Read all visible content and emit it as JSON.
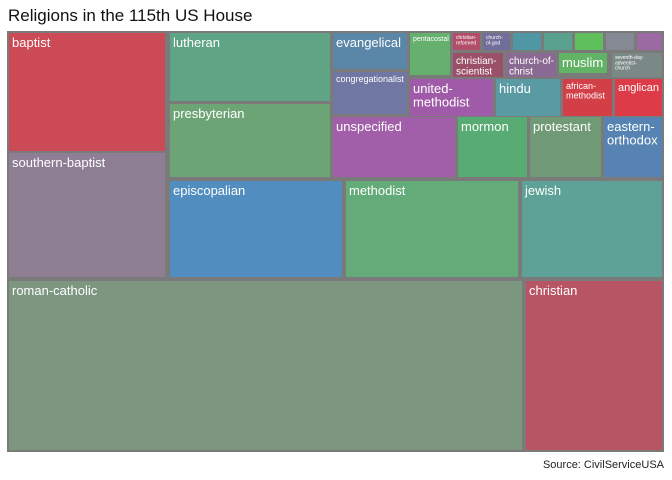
{
  "title": "Religions in the 115th US House",
  "source": "Source: CivilServiceUSA",
  "chart_data": {
    "type": "treemap",
    "items": [
      {
        "name": "baptist",
        "color": "#cb4a55"
      },
      {
        "name": "southern-baptist",
        "color": "#8d7e94"
      },
      {
        "name": "lutheran",
        "color": "#5ea485"
      },
      {
        "name": "presbyterian",
        "color": "#6ca475"
      },
      {
        "name": "episcopalian",
        "color": "#518ebf"
      },
      {
        "name": "methodist",
        "color": "#63ab78"
      },
      {
        "name": "jewish",
        "color": "#5ea197"
      },
      {
        "name": "roman-catholic",
        "color": "#7c9680"
      },
      {
        "name": "christian",
        "color": "#b85564"
      },
      {
        "name": "evangelical",
        "color": "#5a86a8"
      },
      {
        "name": "congregationalist",
        "color": "#6f77a2"
      },
      {
        "name": "pentacostal",
        "color": "#65b06e"
      },
      {
        "name": "christian-reformed",
        "color": "#b34e6a"
      },
      {
        "name": "church-of-god",
        "color": "#706e9a"
      },
      {
        "name": "christian-scientist",
        "color": "#9a5068"
      },
      {
        "name": "church-of-christ",
        "color": "#8a6a93"
      },
      {
        "name": "muslim",
        "color": "#62b366"
      },
      {
        "name": "seventh-day-adventist-church",
        "color": "#7b8986"
      },
      {
        "name": "united-methodist",
        "color": "#a05ba8"
      },
      {
        "name": "hindu",
        "color": "#5a9aa2"
      },
      {
        "name": "african-methodist",
        "color": "#d33f47"
      },
      {
        "name": "anglican",
        "color": "#dc3b47"
      },
      {
        "name": "unspecified",
        "color": "#a15ea9"
      },
      {
        "name": "mormon",
        "color": "#58ab72"
      },
      {
        "name": "protestant",
        "color": "#6f9a75"
      },
      {
        "name": "eastern-orthodox",
        "color": "#5683b2"
      },
      {
        "name": "",
        "color": "#4f97a5"
      },
      {
        "name": "",
        "color": "#5aa08f"
      },
      {
        "name": "",
        "color": "#5fbf5c"
      },
      {
        "name": "",
        "color": "#848993"
      },
      {
        "name": "",
        "color": "#9b6aa2"
      }
    ]
  }
}
